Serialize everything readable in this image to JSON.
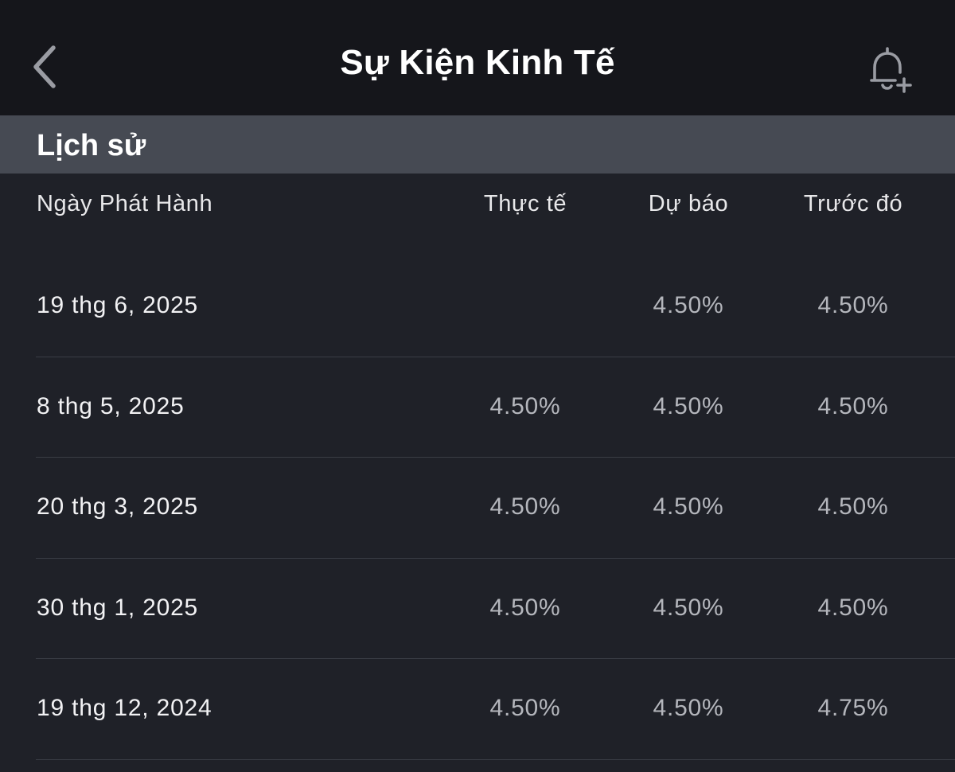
{
  "navbar": {
    "title": "Sự Kiện Kinh Tế",
    "back_icon": "chevron-left-icon",
    "alert_icon": "bell-plus-icon"
  },
  "section": {
    "title": "Lịch sử"
  },
  "columns": {
    "date": "Ngày Phát Hành",
    "actual": "Thực tế",
    "forecast": "Dự báo",
    "previous": "Trước đó"
  },
  "rows": [
    {
      "date": "19 thg 6, 2025",
      "actual": "",
      "forecast": "4.50%",
      "previous": "4.50%"
    },
    {
      "date": "8 thg 5, 2025",
      "actual": "4.50%",
      "forecast": "4.50%",
      "previous": "4.50%"
    },
    {
      "date": "20 thg 3, 2025",
      "actual": "4.50%",
      "forecast": "4.50%",
      "previous": "4.50%"
    },
    {
      "date": "30 thg 1, 2025",
      "actual": "4.50%",
      "forecast": "4.50%",
      "previous": "4.50%"
    },
    {
      "date": "19 thg 12, 2024",
      "actual": "4.50%",
      "forecast": "4.50%",
      "previous": "4.75%"
    }
  ],
  "colors": {
    "background": "#1f2128",
    "navbar": "#15161b",
    "section_header": "#464a53",
    "value_text": "#b4b6bc"
  }
}
